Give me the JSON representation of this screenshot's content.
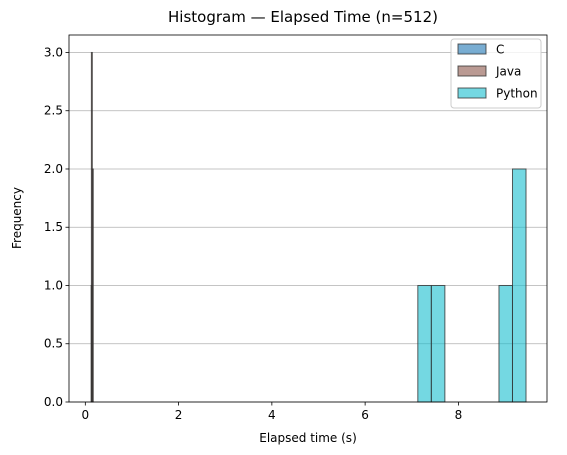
{
  "chart_data": {
    "type": "bar",
    "title": "Histogram — Elapsed Time (n=512)",
    "xlabel": "Elapsed time (s)",
    "ylabel": "Frequency",
    "xlim": [
      -0.35,
      9.9
    ],
    "ylim": [
      0,
      3.15
    ],
    "xticks": [
      0,
      2,
      4,
      6,
      8
    ],
    "yticks": [
      0.0,
      0.5,
      1.0,
      1.5,
      2.0,
      2.5,
      3.0
    ],
    "grid": "y",
    "legend_position": "top-right",
    "series": [
      {
        "name": "C",
        "color": "#1f77b4",
        "bins": [
          {
            "x0": 0.125,
            "x1": 0.133,
            "count": 1
          },
          {
            "x0": 0.133,
            "x1": 0.141,
            "count": 1
          }
        ]
      },
      {
        "name": "Java",
        "color": "#8c564b",
        "bins": [
          {
            "x0": 0.13,
            "x1": 0.15,
            "count": 3
          },
          {
            "x0": 0.15,
            "x1": 0.17,
            "count": 2
          }
        ]
      },
      {
        "name": "Python",
        "color": "#17becf",
        "bins": [
          {
            "x0": 7.13,
            "x1": 7.42,
            "count": 1
          },
          {
            "x0": 7.42,
            "x1": 7.71,
            "count": 1
          },
          {
            "x0": 8.87,
            "x1": 9.16,
            "count": 1
          },
          {
            "x0": 9.16,
            "x1": 9.45,
            "count": 2
          }
        ]
      }
    ]
  }
}
